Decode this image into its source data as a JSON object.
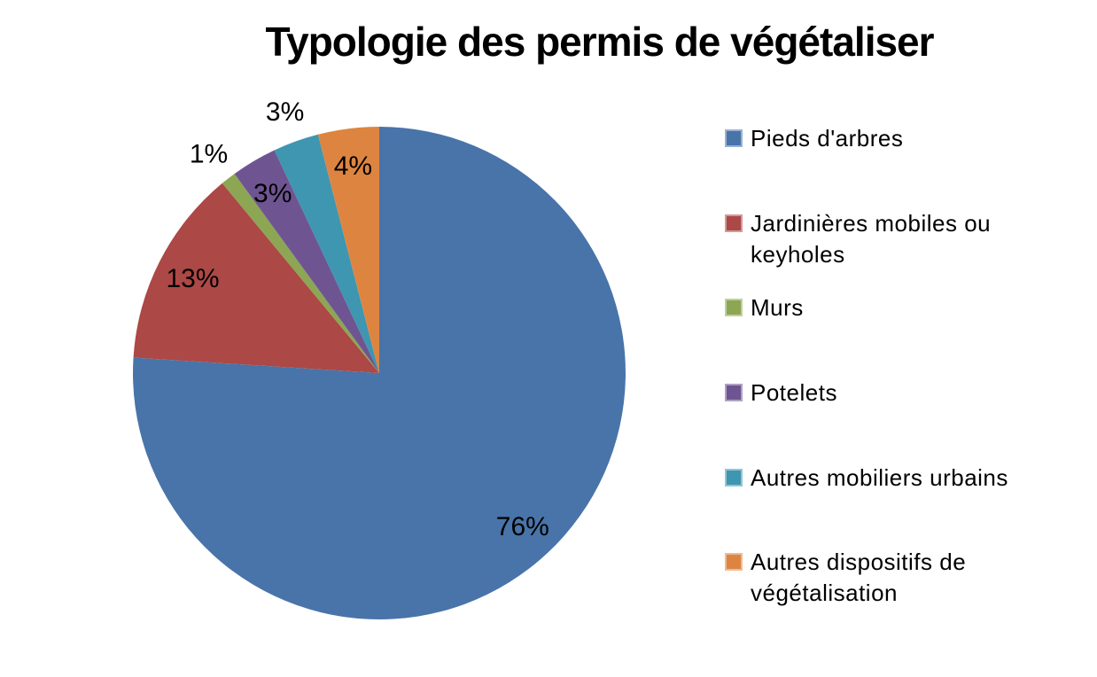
{
  "page": {
    "background": "#FFFFFF",
    "text_color": "#000000"
  },
  "chart_data": {
    "type": "pie",
    "title": "Typologie des permis de végétaliser",
    "unit": "percent",
    "start_angle_deg": 0,
    "direction": "clockwise",
    "legend_position": "right",
    "data_labels": "percent",
    "grid": false,
    "categories": [
      "Pieds d'arbres",
      "Jardinières mobiles ou keyholes",
      "Murs",
      "Potelets",
      "Autres mobiliers urbains",
      "Autres dispositifs de végétalisation"
    ],
    "values": [
      76,
      13,
      1,
      3,
      3,
      4
    ],
    "slices": [
      {
        "label": "Pieds d'arbres",
        "value": 76,
        "pct_label": "76%",
        "color": "#4874A9",
        "label_inside": true
      },
      {
        "label": "Jardinières mobiles ou keyholes",
        "value": 13,
        "pct_label": "13%",
        "color": "#AC4845",
        "label_inside": true
      },
      {
        "label": "Murs",
        "value": 1,
        "pct_label": "1%",
        "color": "#8CA653",
        "label_inside": false
      },
      {
        "label": "Potelets",
        "value": 3,
        "pct_label": "3%",
        "color": "#6E5591",
        "label_inside": true
      },
      {
        "label": "Autres mobiliers urbains",
        "value": 3,
        "pct_label": "3%",
        "color": "#3E96B0",
        "label_inside": false
      },
      {
        "label": "Autres dispositifs de végétalisation",
        "value": 4,
        "pct_label": "4%",
        "color": "#DD8540",
        "label_inside": true
      }
    ]
  },
  "legend": {
    "items": [
      {
        "text": "Pieds d'arbres"
      },
      {
        "text": "Jardinières mobiles ou\nkeyholes"
      },
      {
        "text": "Murs"
      },
      {
        "text": "Potelets"
      },
      {
        "text": "Autres mobiliers urbains"
      },
      {
        "text": "Autres dispositifs de\nvégétalisation"
      }
    ]
  }
}
